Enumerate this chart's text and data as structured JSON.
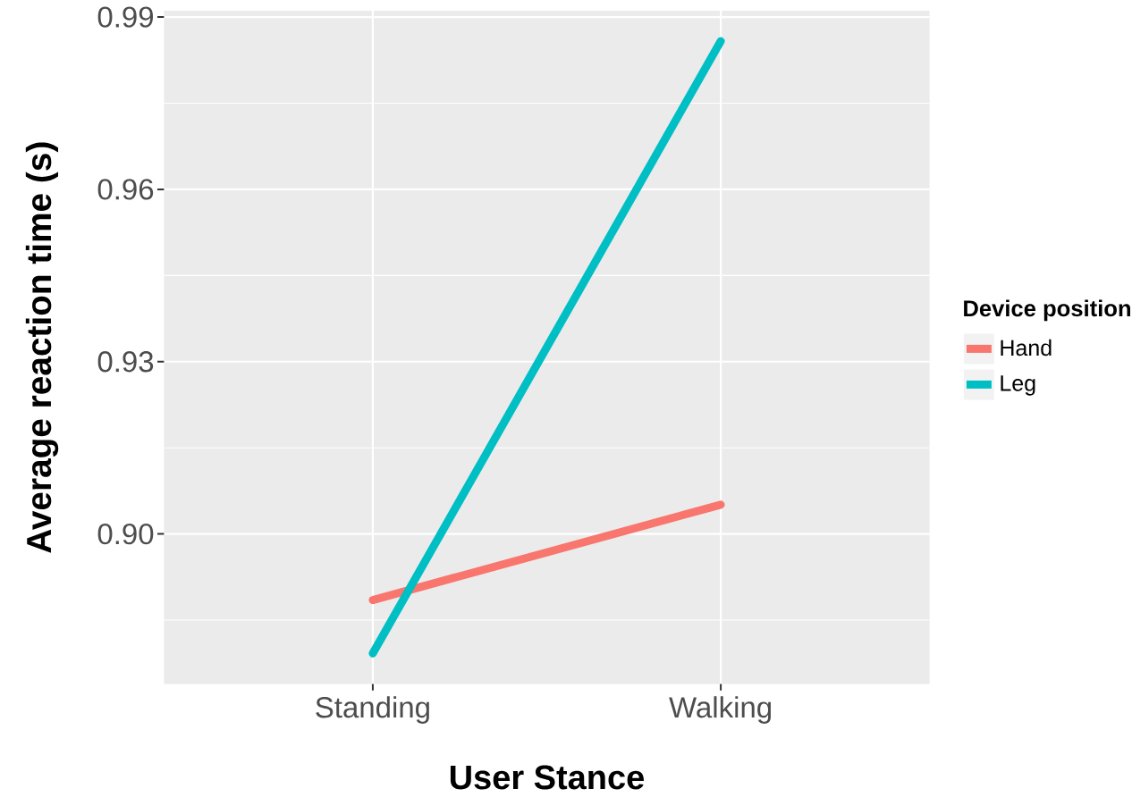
{
  "chart_data": {
    "type": "line",
    "xlabel": "User Stance",
    "ylabel": "Average reaction time (s)",
    "legend_title": "Device position",
    "categories": [
      "Standing",
      "Walking"
    ],
    "series": [
      {
        "name": "Hand",
        "color": "#f8766d",
        "values": [
          0.8885,
          0.9051
        ]
      },
      {
        "name": "Leg",
        "color": "#00bfc4",
        "values": [
          0.8792,
          0.9858
        ]
      }
    ],
    "ylim": [
      0.8739,
      0.9911
    ],
    "yticks": [
      {
        "value": 0.9,
        "label": "0.90"
      },
      0.93,
      0.96,
      0.99
    ],
    "grid": true,
    "legend": "right",
    "marker": "none",
    "line_style": "solid"
  }
}
